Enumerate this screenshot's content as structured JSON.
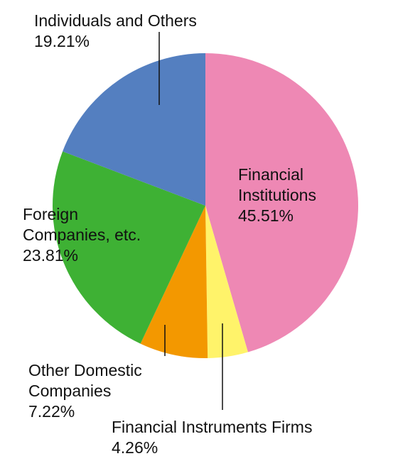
{
  "chart_data": {
    "type": "pie",
    "categories": [
      "Financial Institutions",
      "Financial Instruments Firms",
      "Other Domestic Companies",
      "Foreign Companies, etc.",
      "Individuals and Others"
    ],
    "values": [
      45.51,
      4.26,
      7.22,
      23.81,
      19.21
    ],
    "value_labels": [
      "45.51%",
      "4.26%",
      "7.22%",
      "23.81%",
      "19.21%"
    ],
    "colors": [
      "#ee88b4",
      "#fff36a",
      "#f39800",
      "#3eb134",
      "#547fc0"
    ]
  }
}
